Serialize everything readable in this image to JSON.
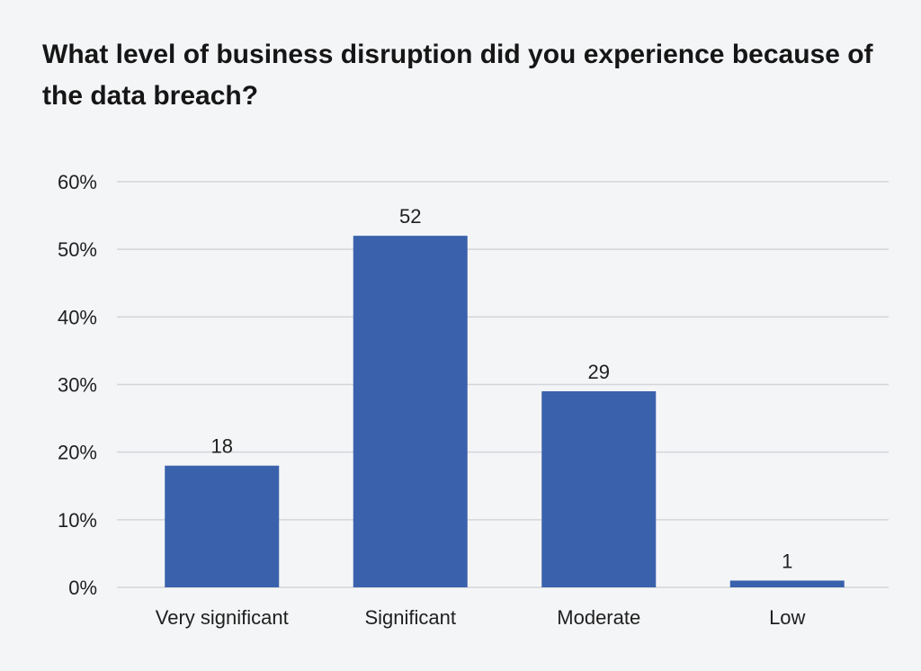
{
  "chart_data": {
    "type": "bar",
    "title": "What level of business disruption did you experience because of the data breach?",
    "categories": [
      "Very significant",
      "Significant",
      "Moderate",
      "Low"
    ],
    "values": [
      18,
      52,
      29,
      1
    ],
    "value_labels": [
      "18",
      "52",
      "29",
      "1"
    ],
    "xlabel": "",
    "ylabel": "",
    "ylim": [
      0,
      60
    ],
    "yticks": [
      0,
      10,
      20,
      30,
      40,
      50,
      60
    ],
    "ytick_labels": [
      "0%",
      "10%",
      "20%",
      "30%",
      "40%",
      "50%",
      "60%"
    ],
    "grid": true,
    "legend": "none",
    "bar_color": "#3a62ac",
    "grid_color": "#d3d5d9",
    "background": "#f4f5f7"
  }
}
